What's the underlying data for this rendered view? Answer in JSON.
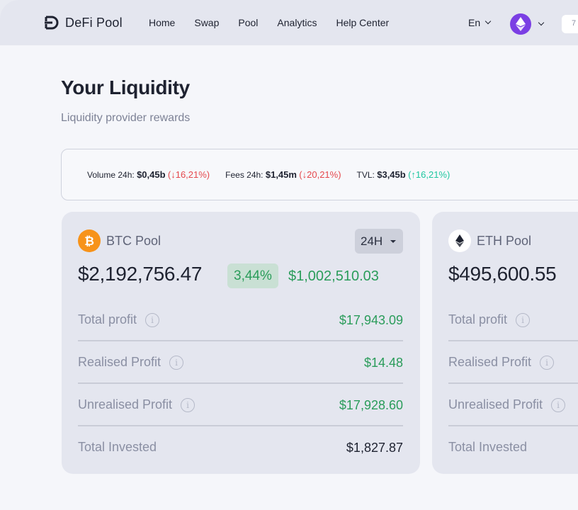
{
  "brand": {
    "name": "DeFi Pool"
  },
  "nav": [
    "Home",
    "Swap",
    "Pool",
    "Analytics",
    "Help Center"
  ],
  "language": "En",
  "wallet": {
    "avatar_icon": "ethereum-icon",
    "avatar_color": "#7b3fe4"
  },
  "connect_box_text": "7",
  "page": {
    "title": "Your Liquidity",
    "subtitle": "Liquidity provider rewards"
  },
  "stats": [
    {
      "label": "Volume 24h:",
      "value": "$0,45b",
      "change": "(↓16,21%)",
      "direction": "down"
    },
    {
      "label": "Fees 24h:",
      "value": "$1,45m",
      "change": "(↓20,21%)",
      "direction": "down"
    },
    {
      "label": "TVL:",
      "value": "$3,45b",
      "change": "(↑16,21%)",
      "direction": "up"
    }
  ],
  "pools": [
    {
      "name": "BTC Pool",
      "icon": "bitcoin-icon",
      "period": "24H",
      "total_value": "$2,192,756.47",
      "change_pct": "3,44%",
      "change_value": "$1,002,510.03",
      "rows": [
        {
          "label": "Total profit",
          "value": "$17,943.09",
          "has_info": true
        },
        {
          "label": "Realised Profit",
          "value": "$14.48",
          "has_info": true
        },
        {
          "label": "Unrealised Profit",
          "value": "$17,928.60",
          "has_info": true
        },
        {
          "label": "Total Invested",
          "value": "$1,827.87",
          "has_info": false
        }
      ]
    },
    {
      "name": "ETH Pool",
      "icon": "ethereum-icon",
      "total_value": "$495,600.55",
      "rows": [
        {
          "label": "Total profit",
          "has_info": true
        },
        {
          "label": "Realised Profit",
          "has_info": true
        },
        {
          "label": "Unrealised Profit",
          "has_info": true
        },
        {
          "label": "Total Invested",
          "has_info": false
        }
      ]
    }
  ],
  "colors": {
    "positive": "#2a9c5a",
    "negative": "#e5484d",
    "tvl_positive": "#1fc7a0",
    "bitcoin": "#f7931a",
    "ethereum_avatar": "#7b3fe4"
  }
}
